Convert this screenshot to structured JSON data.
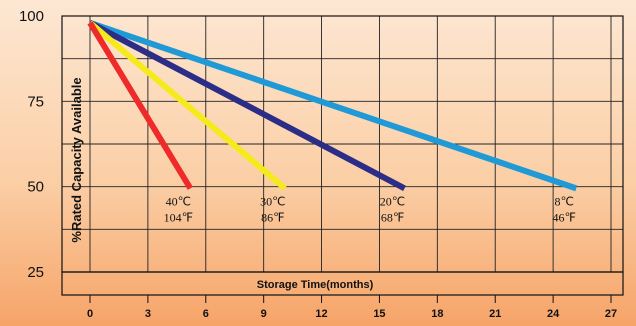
{
  "chart_data": {
    "type": "line",
    "xlabel": "Storage Time(months)",
    "ylabel": "%Rated Capacity Available",
    "xlim": [
      0,
      27
    ],
    "ylim": [
      25,
      100
    ],
    "x_ticks": [
      "0",
      "3",
      "6",
      "9",
      "12",
      "15",
      "18",
      "21",
      "24",
      "27"
    ],
    "y_ticks": [
      "100",
      "75",
      "50",
      "25"
    ],
    "grid": true,
    "series": [
      {
        "name": "40℃ 104℉",
        "color": "#ee2a2a",
        "label_c": "40℃",
        "label_f": "104℉",
        "points": [
          [
            0,
            98
          ],
          [
            5.2,
            49.5
          ]
        ]
      },
      {
        "name": "30℃ 86℉",
        "color": "#f4ea1c",
        "label_c": "30℃",
        "label_f": "86℉",
        "points": [
          [
            0,
            98
          ],
          [
            10.1,
            49.5
          ]
        ]
      },
      {
        "name": "20℃ 68℉",
        "color": "#2b2d86",
        "label_c": "20℃",
        "label_f": "68℉",
        "points": [
          [
            0,
            98
          ],
          [
            16.3,
            49.5
          ]
        ]
      },
      {
        "name": "8℃ 46℉",
        "color": "#1f9ad7",
        "label_c": "8℃",
        "label_f": "46℉",
        "points": [
          [
            0,
            98
          ],
          [
            25.2,
            49.5
          ]
        ]
      }
    ]
  }
}
